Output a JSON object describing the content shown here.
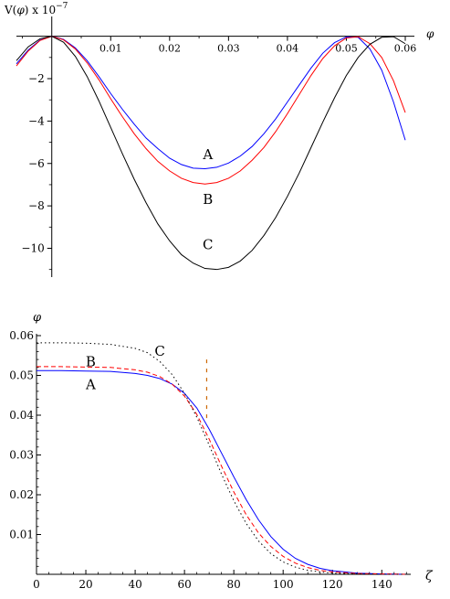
{
  "chart_data": [
    {
      "type": "line",
      "ylabel_prefix": "V(",
      "ylabel_symbol": "φ",
      "ylabel_suffix": ") x 10",
      "ylabel_exp": "−7",
      "xlabel": "φ",
      "xlim": [
        -0.006,
        0.06
      ],
      "ylim": [
        -11.1,
        0.2
      ],
      "xticks": [
        0.01,
        0.02,
        0.03,
        0.04,
        0.05,
        0.06
      ],
      "xtick_labels": [
        "0.01",
        "0.02",
        "0.03",
        "0.04",
        "0.05",
        "0.06"
      ],
      "yticks": [
        -2,
        -4,
        -6,
        -8,
        -10
      ],
      "ytick_labels": [
        "−2",
        "−4",
        "−6",
        "−8",
        "−10"
      ],
      "grid": false,
      "series": [
        {
          "name": "A",
          "color": "#0000ff",
          "x": [
            -0.006,
            -0.004,
            -0.002,
            0,
            0.002,
            0.004,
            0.006,
            0.008,
            0.01,
            0.012,
            0.014,
            0.016,
            0.018,
            0.02,
            0.022,
            0.024,
            0.026,
            0.028,
            0.03,
            0.032,
            0.034,
            0.036,
            0.038,
            0.04,
            0.042,
            0.044,
            0.046,
            0.048,
            0.05,
            0.052,
            0.054,
            0.056,
            0.058,
            0.06
          ],
          "y": [
            -1.3,
            -0.65,
            -0.18,
            0,
            -0.15,
            -0.55,
            -1.15,
            -1.9,
            -2.7,
            -3.45,
            -4.15,
            -4.8,
            -5.3,
            -5.75,
            -6.05,
            -6.22,
            -6.25,
            -6.18,
            -5.98,
            -5.65,
            -5.2,
            -4.6,
            -3.9,
            -3.1,
            -2.3,
            -1.5,
            -0.8,
            -0.3,
            -0.03,
            -0.05,
            -0.6,
            -1.6,
            -3.1,
            -4.9
          ]
        },
        {
          "name": "B",
          "color": "#ff0000",
          "x": [
            -0.006,
            -0.004,
            -0.002,
            0,
            0.002,
            0.004,
            0.006,
            0.008,
            0.01,
            0.012,
            0.014,
            0.016,
            0.018,
            0.02,
            0.022,
            0.024,
            0.026,
            0.028,
            0.03,
            0.032,
            0.034,
            0.036,
            0.038,
            0.04,
            0.042,
            0.044,
            0.046,
            0.048,
            0.05,
            0.052,
            0.054,
            0.056,
            0.058,
            0.06
          ],
          "y": [
            -1.4,
            -0.7,
            -0.2,
            0,
            -0.17,
            -0.6,
            -1.25,
            -2.05,
            -2.95,
            -3.8,
            -4.6,
            -5.3,
            -5.9,
            -6.35,
            -6.7,
            -6.9,
            -6.97,
            -6.9,
            -6.7,
            -6.35,
            -5.85,
            -5.25,
            -4.5,
            -3.65,
            -2.75,
            -1.85,
            -1.05,
            -0.45,
            -0.08,
            -0.02,
            -0.35,
            -1.0,
            -2.1,
            -3.6
          ]
        },
        {
          "name": "C",
          "color": "#000000",
          "x": [
            -0.006,
            -0.004,
            -0.002,
            0,
            0.002,
            0.004,
            0.006,
            0.008,
            0.01,
            0.012,
            0.014,
            0.016,
            0.018,
            0.02,
            0.022,
            0.024,
            0.026,
            0.028,
            0.03,
            0.032,
            0.034,
            0.036,
            0.038,
            0.04,
            0.042,
            0.044,
            0.046,
            0.048,
            0.05,
            0.052,
            0.054,
            0.056,
            0.058,
            0.06
          ],
          "y": [
            -1.15,
            -0.5,
            -0.12,
            0,
            -0.28,
            -0.95,
            -1.9,
            -3.05,
            -4.3,
            -5.55,
            -6.75,
            -7.85,
            -8.85,
            -9.65,
            -10.3,
            -10.7,
            -10.95,
            -11.0,
            -10.9,
            -10.6,
            -10.1,
            -9.4,
            -8.55,
            -7.55,
            -6.45,
            -5.25,
            -4.05,
            -2.9,
            -1.85,
            -1.0,
            -0.38,
            -0.05,
            -0.02,
            -0.35
          ]
        }
      ],
      "annotations": [
        {
          "text": "A",
          "x": 0.0265,
          "y": -5.8
        },
        {
          "text": "B",
          "x": 0.0265,
          "y": -7.9
        },
        {
          "text": "C",
          "x": 0.0265,
          "y": -10.05
        }
      ]
    },
    {
      "type": "line",
      "ylabel": "φ",
      "xlabel": "ζ",
      "xlim": [
        0,
        151
      ],
      "ylim": [
        0,
        0.06
      ],
      "xticks": [
        0,
        20,
        40,
        60,
        80,
        100,
        120,
        140
      ],
      "xtick_labels": [
        "0",
        "20",
        "40",
        "60",
        "80",
        "100",
        "120",
        "140"
      ],
      "yticks": [
        0.01,
        0.02,
        0.03,
        0.04,
        0.05,
        0.06
      ],
      "ytick_labels": [
        "0.01",
        "0.02",
        "0.03",
        "0.04",
        "0.05",
        "0.06"
      ],
      "grid": false,
      "series": [
        {
          "name": "A",
          "color": "#0000ff",
          "dash": "solid",
          "x": [
            0,
            10,
            20,
            30,
            40,
            45,
            50,
            55,
            60,
            65,
            70,
            75,
            80,
            85,
            90,
            95,
            100,
            105,
            110,
            115,
            120,
            130,
            140,
            150
          ],
          "y": [
            0.0512,
            0.0512,
            0.0511,
            0.051,
            0.0505,
            0.05,
            0.0492,
            0.0478,
            0.0455,
            0.0418,
            0.0365,
            0.0305,
            0.0245,
            0.0188,
            0.0137,
            0.0095,
            0.0063,
            0.004,
            0.0025,
            0.0015,
            0.0009,
            0.0003,
            0.0001,
            0.0
          ]
        },
        {
          "name": "B",
          "color": "#ff0000",
          "dash": "dashed",
          "x": [
            0,
            10,
            20,
            30,
            40,
            45,
            50,
            55,
            60,
            65,
            70,
            75,
            80,
            85,
            90,
            95,
            100,
            105,
            110,
            115,
            120,
            130,
            140,
            150
          ],
          "y": [
            0.0522,
            0.0522,
            0.0521,
            0.052,
            0.0514,
            0.0508,
            0.0497,
            0.0478,
            0.0448,
            0.0402,
            0.034,
            0.0272,
            0.0207,
            0.015,
            0.0104,
            0.007,
            0.0045,
            0.0028,
            0.0017,
            0.001,
            0.0006,
            0.0002,
            0.0001,
            0.0
          ]
        },
        {
          "name": "C",
          "color": "#000000",
          "dash": "dotted",
          "x": [
            0,
            10,
            20,
            30,
            40,
            45,
            50,
            55,
            60,
            65,
            70,
            75,
            80,
            85,
            90,
            95,
            100,
            105,
            110,
            115,
            120,
            130,
            140,
            150
          ],
          "y": [
            0.0582,
            0.0582,
            0.0581,
            0.0578,
            0.0568,
            0.0557,
            0.0535,
            0.0502,
            0.0455,
            0.0395,
            0.0325,
            0.0252,
            0.0185,
            0.0128,
            0.0084,
            0.0052,
            0.0031,
            0.0018,
            0.001,
            0.0006,
            0.0003,
            0.0001,
            0.0,
            0.0
          ]
        }
      ],
      "annotations": [
        {
          "text": "A",
          "x": 22,
          "y": 0.0465
        },
        {
          "text": "B",
          "x": 22,
          "y": 0.0523
        },
        {
          "text": "C",
          "x": 50,
          "y": 0.055
        }
      ],
      "marker": {
        "x": 69,
        "y_range": [
          0.039,
          0.054
        ],
        "color": "#cc6600"
      }
    }
  ]
}
